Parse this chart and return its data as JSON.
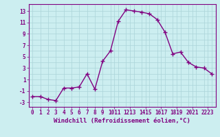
{
  "x": [
    0,
    1,
    2,
    3,
    4,
    5,
    6,
    7,
    8,
    9,
    10,
    11,
    12,
    13,
    14,
    15,
    16,
    17,
    18,
    19,
    20,
    21,
    22,
    23
  ],
  "y": [
    -2,
    -2,
    -2.5,
    -2.7,
    -0.5,
    -0.5,
    -0.3,
    2,
    -0.7,
    4.2,
    6,
    11.2,
    13.2,
    13,
    12.8,
    12.5,
    11.5,
    9.3,
    5.5,
    5.8,
    4,
    3.2,
    3,
    2
  ],
  "line_color": "#800080",
  "marker": "+",
  "markersize": 4,
  "linewidth": 1.0,
  "background_color": "#cceef0",
  "grid_color": "#aad4d8",
  "xlabel": "Windchill (Refroidissement éolien,°C)",
  "xlabel_fontsize": 6.5,
  "yticks": [
    -3,
    -1,
    1,
    3,
    5,
    7,
    9,
    11,
    13
  ],
  "xtick_labels": [
    "0",
    "1",
    "2",
    "3",
    "4",
    "5",
    "6",
    "7",
    "8",
    "9",
    "1011",
    "1213",
    "1415",
    "1617",
    "1819",
    "2021",
    "2223"
  ],
  "xlim": [
    -0.5,
    23.5
  ],
  "ylim": [
    -3.8,
    14.2
  ],
  "tick_fontsize": 5.5,
  "label_color": "#800080"
}
